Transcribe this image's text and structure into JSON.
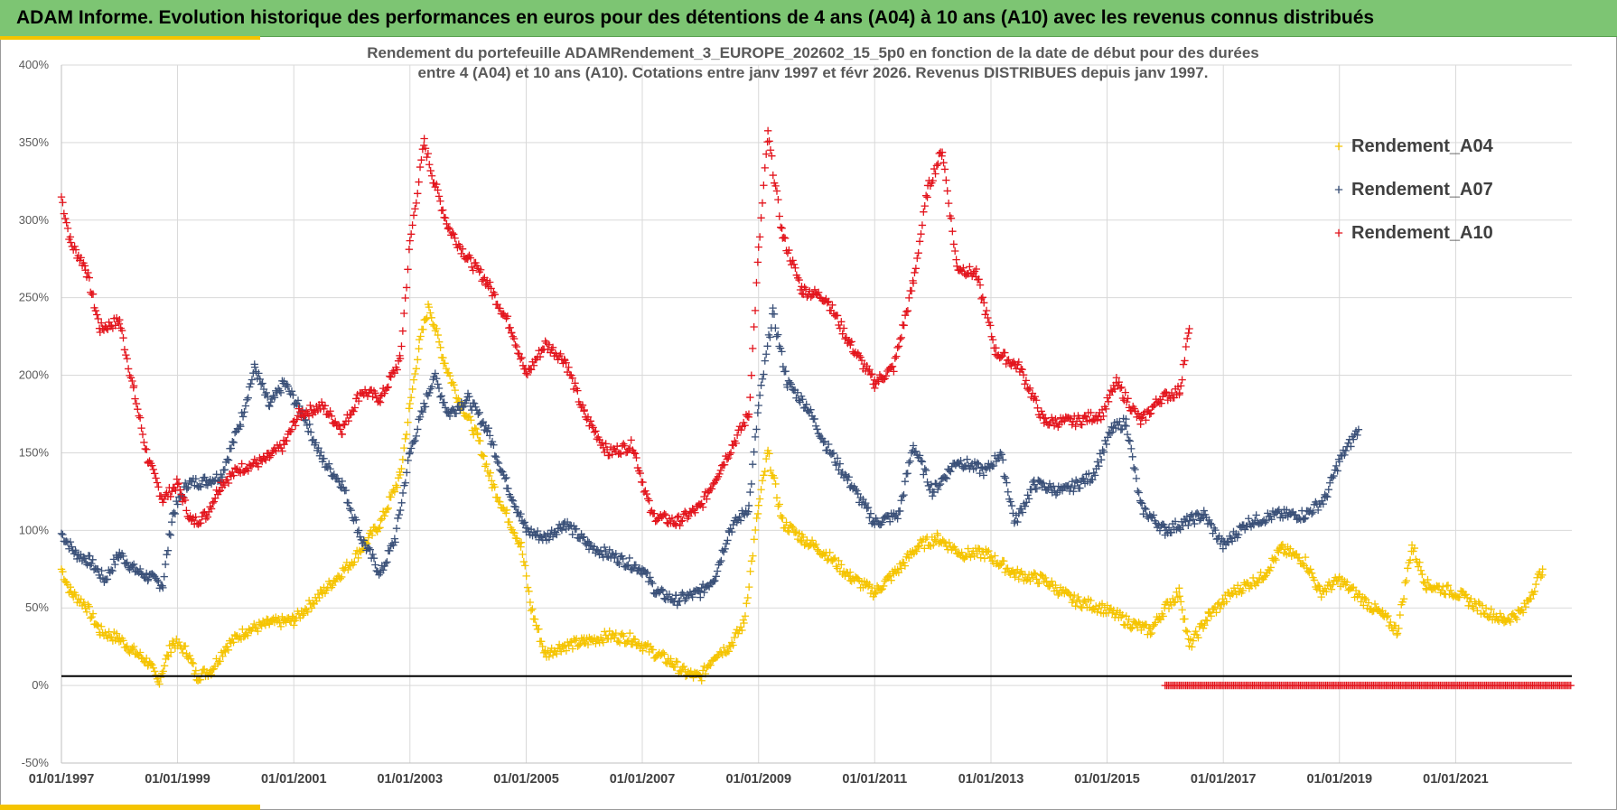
{
  "banner": {
    "title": "ADAM Informe. Evolution historique des performances en euros pour des détentions de 4 ans (A04) à 10 ans (A10) avec les revenus connus distribués",
    "color": "#7dc573",
    "accent": "#f5c400"
  },
  "chart_data": {
    "type": "scatter",
    "marker": "plus",
    "title_line1": "Rendement du portefeuille ADAMRendement_3_EUROPE_202602_15_5p0  en fonction de la date de début pour des durées",
    "title_line2": "entre 4 (A04) et 10 ans (A10). Cotations  entre janv 1997 et févr 2026. Revenus DISTRIBUES depuis janv 1997.",
    "xlabel": "",
    "ylabel": "",
    "x_range": [
      "1997-01-01",
      "2023-01-01"
    ],
    "ylim": [
      -0.5,
      4.0
    ],
    "y_ticks": [
      -0.5,
      0,
      0.5,
      1.0,
      1.5,
      2.0,
      2.5,
      3.0,
      3.5,
      4.0
    ],
    "y_tick_labels": [
      "-50%",
      "0%",
      "50%",
      "100%",
      "150%",
      "200%",
      "250%",
      "300%",
      "350%",
      "400%"
    ],
    "x_tick_labels": [
      "01/01/1997",
      "01/01/1999",
      "01/01/2001",
      "01/01/2003",
      "01/01/2005",
      "01/01/2007",
      "01/01/2009",
      "01/01/2011",
      "01/01/2013",
      "01/01/2015",
      "01/01/2017",
      "01/01/2019",
      "01/01/2021"
    ],
    "grid": true,
    "legend_position": "top-right",
    "reference_line": 0.06,
    "series": [
      {
        "name": "Rendement_A04",
        "color": "#f5c400",
        "points": [
          [
            "1997-01-01",
            0.75
          ],
          [
            "1997-03-01",
            0.6
          ],
          [
            "1997-06-01",
            0.52
          ],
          [
            "1997-09-01",
            0.35
          ],
          [
            "1998-01-01",
            0.3
          ],
          [
            "1998-04-01",
            0.22
          ],
          [
            "1998-07-01",
            0.15
          ],
          [
            "1998-09-01",
            0.02
          ],
          [
            "1998-12-01",
            0.28
          ],
          [
            "1999-03-01",
            0.22
          ],
          [
            "1999-05-01",
            0.06
          ],
          [
            "1999-08-01",
            0.1
          ],
          [
            "1999-11-01",
            0.25
          ],
          [
            "2000-03-01",
            0.35
          ],
          [
            "2000-08-01",
            0.4
          ],
          [
            "2001-01-01",
            0.42
          ],
          [
            "2001-07-01",
            0.6
          ],
          [
            "2002-01-01",
            0.8
          ],
          [
            "2002-07-01",
            1.05
          ],
          [
            "2002-11-01",
            1.35
          ],
          [
            "2003-01-01",
            1.8
          ],
          [
            "2003-03-01",
            2.2
          ],
          [
            "2003-05-01",
            2.45
          ],
          [
            "2003-08-01",
            2.1
          ],
          [
            "2003-11-01",
            1.85
          ],
          [
            "2004-03-01",
            1.6
          ],
          [
            "2004-06-01",
            1.3
          ],
          [
            "2004-09-01",
            1.1
          ],
          [
            "2004-12-01",
            0.9
          ],
          [
            "2005-02-01",
            0.5
          ],
          [
            "2005-05-01",
            0.2
          ],
          [
            "2005-08-01",
            0.25
          ],
          [
            "2006-01-01",
            0.28
          ],
          [
            "2006-06-01",
            0.32
          ],
          [
            "2006-11-01",
            0.3
          ],
          [
            "2007-03-01",
            0.22
          ],
          [
            "2007-07-01",
            0.15
          ],
          [
            "2007-10-01",
            0.08
          ],
          [
            "2008-01-01",
            0.05
          ],
          [
            "2008-04-01",
            0.2
          ],
          [
            "2008-07-01",
            0.25
          ],
          [
            "2008-10-01",
            0.4
          ],
          [
            "2009-01-01",
            1.15
          ],
          [
            "2009-03-01",
            1.5
          ],
          [
            "2009-06-01",
            1.05
          ],
          [
            "2009-10-01",
            0.95
          ],
          [
            "2010-03-01",
            0.85
          ],
          [
            "2010-08-01",
            0.7
          ],
          [
            "2011-01-01",
            0.6
          ],
          [
            "2011-06-01",
            0.75
          ],
          [
            "2011-10-01",
            0.9
          ],
          [
            "2012-02-01",
            0.95
          ],
          [
            "2012-07-01",
            0.85
          ],
          [
            "2012-12-01",
            0.85
          ],
          [
            "2013-06-01",
            0.72
          ],
          [
            "2013-12-01",
            0.68
          ],
          [
            "2014-06-01",
            0.55
          ],
          [
            "2014-12-01",
            0.5
          ],
          [
            "2015-06-01",
            0.4
          ],
          [
            "2015-10-01",
            0.35
          ],
          [
            "2016-01-01",
            0.5
          ],
          [
            "2016-04-01",
            0.6
          ],
          [
            "2016-06-01",
            0.25
          ],
          [
            "2016-10-01",
            0.45
          ],
          [
            "2017-03-01",
            0.6
          ],
          [
            "2017-09-01",
            0.7
          ],
          [
            "2018-01-01",
            0.88
          ],
          [
            "2018-06-01",
            0.8
          ],
          [
            "2018-09-01",
            0.6
          ],
          [
            "2019-01-01",
            0.68
          ],
          [
            "2019-06-01",
            0.55
          ],
          [
            "2019-10-01",
            0.45
          ],
          [
            "2020-01-01",
            0.35
          ],
          [
            "2020-04-01",
            0.9
          ],
          [
            "2020-07-01",
            0.65
          ],
          [
            "2021-01-01",
            0.6
          ],
          [
            "2021-06-01",
            0.5
          ],
          [
            "2021-11-01",
            0.42
          ],
          [
            "2022-03-01",
            0.48
          ],
          [
            "2022-07-01",
            0.75
          ]
        ]
      },
      {
        "name": "Rendement_A07",
        "color": "#3a5078",
        "points": [
          [
            "1997-01-01",
            0.98
          ],
          [
            "1997-04-01",
            0.85
          ],
          [
            "1997-07-01",
            0.8
          ],
          [
            "1997-10-01",
            0.68
          ],
          [
            "1998-01-01",
            0.85
          ],
          [
            "1998-04-01",
            0.75
          ],
          [
            "1998-07-01",
            0.7
          ],
          [
            "1998-10-01",
            0.65
          ],
          [
            "1998-12-01",
            1.1
          ],
          [
            "1999-03-01",
            1.3
          ],
          [
            "1999-07-01",
            1.32
          ],
          [
            "1999-10-01",
            1.35
          ],
          [
            "2000-02-01",
            1.7
          ],
          [
            "2000-05-01",
            2.05
          ],
          [
            "2000-08-01",
            1.8
          ],
          [
            "2000-11-01",
            1.95
          ],
          [
            "2001-03-01",
            1.75
          ],
          [
            "2001-07-01",
            1.45
          ],
          [
            "2001-11-01",
            1.3
          ],
          [
            "2002-03-01",
            0.95
          ],
          [
            "2002-07-01",
            0.72
          ],
          [
            "2002-10-01",
            0.95
          ],
          [
            "2003-01-01",
            1.5
          ],
          [
            "2003-04-01",
            1.8
          ],
          [
            "2003-06-01",
            2.0
          ],
          [
            "2003-09-01",
            1.75
          ],
          [
            "2004-01-01",
            1.85
          ],
          [
            "2004-05-01",
            1.65
          ],
          [
            "2004-09-01",
            1.3
          ],
          [
            "2005-01-01",
            1.0
          ],
          [
            "2005-05-01",
            0.95
          ],
          [
            "2005-09-01",
            1.05
          ],
          [
            "2006-02-01",
            0.9
          ],
          [
            "2006-08-01",
            0.82
          ],
          [
            "2007-01-01",
            0.75
          ],
          [
            "2007-04-01",
            0.6
          ],
          [
            "2007-08-01",
            0.55
          ],
          [
            "2008-01-01",
            0.6
          ],
          [
            "2008-04-01",
            0.7
          ],
          [
            "2008-07-01",
            1.0
          ],
          [
            "2008-11-01",
            1.15
          ],
          [
            "2009-01-01",
            1.8
          ],
          [
            "2009-04-01",
            2.4
          ],
          [
            "2009-07-01",
            1.95
          ],
          [
            "2009-11-01",
            1.8
          ],
          [
            "2010-03-01",
            1.55
          ],
          [
            "2010-08-01",
            1.3
          ],
          [
            "2011-01-01",
            1.05
          ],
          [
            "2011-06-01",
            1.1
          ],
          [
            "2011-09-01",
            1.55
          ],
          [
            "2012-01-01",
            1.25
          ],
          [
            "2012-06-01",
            1.45
          ],
          [
            "2012-12-01",
            1.38
          ],
          [
            "2013-03-01",
            1.5
          ],
          [
            "2013-06-01",
            1.05
          ],
          [
            "2013-10-01",
            1.3
          ],
          [
            "2014-04-01",
            1.25
          ],
          [
            "2014-10-01",
            1.35
          ],
          [
            "2015-02-01",
            1.65
          ],
          [
            "2015-05-01",
            1.7
          ],
          [
            "2015-08-01",
            1.15
          ],
          [
            "2016-01-01",
            1.0
          ],
          [
            "2016-05-01",
            1.05
          ],
          [
            "2016-09-01",
            1.1
          ],
          [
            "2017-01-01",
            0.9
          ],
          [
            "2017-06-01",
            1.05
          ],
          [
            "2017-12-01",
            1.1
          ],
          [
            "2018-06-01",
            1.1
          ],
          [
            "2018-10-01",
            1.2
          ],
          [
            "2019-01-01",
            1.45
          ],
          [
            "2019-05-01",
            1.65
          ]
        ]
      },
      {
        "name": "Rendement_A10",
        "color": "#e3141c",
        "points": [
          [
            "1997-01-01",
            3.15
          ],
          [
            "1997-03-01",
            2.85
          ],
          [
            "1997-06-01",
            2.7
          ],
          [
            "1997-09-01",
            2.3
          ],
          [
            "1998-01-01",
            2.35
          ],
          [
            "1998-04-01",
            1.9
          ],
          [
            "1998-07-01",
            1.45
          ],
          [
            "1998-10-01",
            1.2
          ],
          [
            "1999-01-01",
            1.3
          ],
          [
            "1999-04-01",
            1.05
          ],
          [
            "1999-07-01",
            1.1
          ],
          [
            "1999-10-01",
            1.3
          ],
          [
            "2000-02-01",
            1.4
          ],
          [
            "2000-07-01",
            1.45
          ],
          [
            "2000-11-01",
            1.55
          ],
          [
            "2001-02-01",
            1.75
          ],
          [
            "2001-07-01",
            1.8
          ],
          [
            "2001-11-01",
            1.65
          ],
          [
            "2002-03-01",
            1.9
          ],
          [
            "2002-07-01",
            1.85
          ],
          [
            "2002-11-01",
            2.1
          ],
          [
            "2003-01-01",
            2.85
          ],
          [
            "2003-04-01",
            3.5
          ],
          [
            "2003-06-01",
            3.25
          ],
          [
            "2003-09-01",
            2.95
          ],
          [
            "2004-01-01",
            2.75
          ],
          [
            "2004-05-01",
            2.6
          ],
          [
            "2004-10-01",
            2.3
          ],
          [
            "2005-01-01",
            2.0
          ],
          [
            "2005-05-01",
            2.2
          ],
          [
            "2005-09-01",
            2.1
          ],
          [
            "2006-01-01",
            1.75
          ],
          [
            "2006-06-01",
            1.5
          ],
          [
            "2006-11-01",
            1.55
          ],
          [
            "2007-03-01",
            1.1
          ],
          [
            "2007-08-01",
            1.05
          ],
          [
            "2008-01-01",
            1.15
          ],
          [
            "2008-06-01",
            1.45
          ],
          [
            "2008-11-01",
            1.75
          ],
          [
            "2009-01-01",
            2.8
          ],
          [
            "2009-03-01",
            3.55
          ],
          [
            "2009-06-01",
            2.9
          ],
          [
            "2009-10-01",
            2.55
          ],
          [
            "2010-03-01",
            2.5
          ],
          [
            "2010-08-01",
            2.2
          ],
          [
            "2011-01-01",
            1.95
          ],
          [
            "2011-05-01",
            2.05
          ],
          [
            "2011-09-01",
            2.6
          ],
          [
            "2011-12-01",
            3.2
          ],
          [
            "2012-03-01",
            3.45
          ],
          [
            "2012-06-01",
            2.7
          ],
          [
            "2012-10-01",
            2.65
          ],
          [
            "2013-02-01",
            2.15
          ],
          [
            "2013-07-01",
            2.05
          ],
          [
            "2013-12-01",
            1.7
          ],
          [
            "2014-06-01",
            1.7
          ],
          [
            "2014-12-01",
            1.75
          ],
          [
            "2015-03-01",
            1.95
          ],
          [
            "2015-08-01",
            1.7
          ],
          [
            "2015-12-01",
            1.85
          ],
          [
            "2016-04-01",
            1.9
          ],
          [
            "2016-06-01",
            2.3
          ]
        ],
        "zero_run": {
          "from": "2016-01-01",
          "to": "2023-01-01",
          "value": 0.0
        }
      }
    ]
  }
}
